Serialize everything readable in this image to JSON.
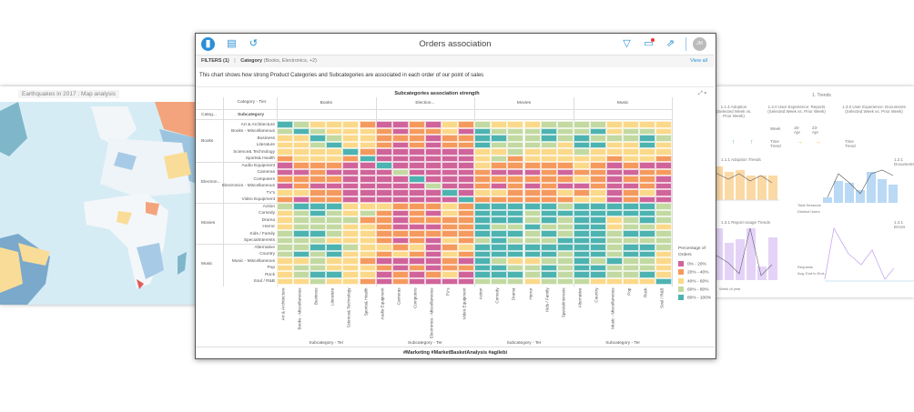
{
  "map_panel": {
    "title": "Earthquakes in 2017 : Map analysis"
  },
  "dashboard_panel": {
    "title": "1. Trends",
    "kpi_headers": [
      "1.1.4 Adoption (Selected Week vs. Prior Week)",
      "1.2.0 User Experience: Reports (Selected Week vs. Prior Week)",
      "1.3.0 User Experience: Documents (Selected Week vs. Prior Week)"
    ],
    "week_label": "Week",
    "weeks": [
      "16-Apr",
      "23-Apr"
    ],
    "trend_label": "Time Trend",
    "chart_titles": [
      "1.1.1 Adoption Trends",
      "1.2.1 Documents",
      "1.3.1 Report Usage Trends",
      "1.4.1 Errors"
    ],
    "legend1": [
      "Total Sessions",
      "Distinct Users"
    ],
    "legend2": [
      "Requests",
      "Avg. End to End..."
    ],
    "x_label": "Week of year"
  },
  "card": {
    "title": "Orders association",
    "icons": [
      "bar-chart-icon",
      "document-icon",
      "history-icon",
      "filter-icon",
      "comment-icon",
      "share-icon"
    ],
    "avatar": "JM",
    "filters": {
      "label": "FILTERS (1)",
      "sep": "|",
      "field": "Category",
      "values": "(Books, Electronics, +2)",
      "view_all": "View all"
    },
    "description": "This chart shows how strong Product Categories and Subcategories are associated in each order of our point of sales",
    "footer": "#Marketing #MarketBasketAnalysis #agilebi"
  },
  "chart_data": {
    "type": "heatmap",
    "title": "Subcategories association strength",
    "col_header": "Category - Tier",
    "row_header_category": "Categ...",
    "row_header_sub": "Subcategory",
    "x_axis_label": "Subcategory - Ter",
    "col_groups": [
      "Books",
      "Election...",
      "Movies",
      "Music"
    ],
    "row_groups": [
      "Books",
      "Electron...",
      "Movies",
      "Music"
    ],
    "rows": [
      "Art & Architecture",
      "Books - Miscellaneous",
      "Business",
      "Literature",
      "Science& Technology",
      "Sports& Health",
      "Audio Equipment",
      "Cameras",
      "Computers",
      "Electronics - Miscellaneous",
      "TV's",
      "Video Equipment",
      "Action",
      "Comedy",
      "Drama",
      "Horror",
      "Kids / Family",
      "SpecialInterests",
      "Alternative",
      "Country",
      "Music - Miscellaneous",
      "Pop",
      "Rock",
      "Soul / R&B"
    ],
    "columns": [
      "Art & Architecture",
      "Books - Miscellaneous",
      "Business",
      "Literature",
      "Science& Technology",
      "Sports& Health",
      "Audio Equipment",
      "Cameras",
      "Computers",
      "Electronics - Miscellaneous",
      "TV's",
      "Video Equipment",
      "Action",
      "Comedy",
      "Drama",
      "Horror",
      "Kids / Family",
      "SpecialInterests",
      "Alternative",
      "Country",
      "Music - Miscellaneous",
      "Pop",
      "Rock",
      "Soul / R&B"
    ],
    "legend_title": "Percentage of Orders",
    "bins": [
      {
        "label": "0% - 20%",
        "color": "#d0649a"
      },
      {
        "label": "20% - 40%",
        "color": "#f59a5e"
      },
      {
        "label": "40% - 60%",
        "color": "#fbd98a"
      },
      {
        "label": "60% - 80%",
        "color": "#c3d9a2"
      },
      {
        "label": "80% - 100%",
        "color": "#4db3b0"
      }
    ],
    "bin_index_matrix": [
      [
        4,
        3,
        2,
        2,
        2,
        1,
        0,
        0,
        1,
        0,
        2,
        1,
        3,
        2,
        2,
        2,
        3,
        3,
        3,
        3,
        2,
        2,
        2,
        2
      ],
      [
        3,
        4,
        3,
        2,
        2,
        2,
        1,
        0,
        1,
        1,
        2,
        0,
        4,
        3,
        3,
        3,
        4,
        3,
        3,
        4,
        2,
        3,
        3,
        2
      ],
      [
        2,
        2,
        4,
        3,
        2,
        2,
        1,
        1,
        1,
        0,
        1,
        1,
        4,
        4,
        3,
        3,
        4,
        3,
        4,
        3,
        3,
        3,
        4,
        3
      ],
      [
        2,
        2,
        3,
        4,
        2,
        2,
        1,
        0,
        1,
        0,
        1,
        1,
        4,
        3,
        3,
        3,
        3,
        2,
        4,
        4,
        2,
        2,
        4,
        2
      ],
      [
        2,
        2,
        2,
        2,
        4,
        1,
        0,
        0,
        0,
        0,
        0,
        0,
        2,
        2,
        3,
        2,
        2,
        2,
        3,
        2,
        2,
        2,
        2,
        2
      ],
      [
        1,
        2,
        2,
        2,
        1,
        4,
        0,
        0,
        0,
        0,
        0,
        0,
        2,
        3,
        1,
        2,
        2,
        2,
        2,
        2,
        1,
        2,
        2,
        1
      ],
      [
        0,
        1,
        1,
        1,
        0,
        0,
        4,
        0,
        0,
        0,
        0,
        0,
        2,
        1,
        1,
        1,
        1,
        1,
        2,
        1,
        0,
        1,
        0,
        0
      ],
      [
        0,
        0,
        1,
        0,
        0,
        0,
        0,
        3,
        0,
        0,
        0,
        0,
        1,
        0,
        0,
        0,
        1,
        0,
        1,
        1,
        0,
        0,
        1,
        1
      ],
      [
        1,
        1,
        1,
        1,
        0,
        0,
        0,
        0,
        4,
        0,
        0,
        0,
        1,
        1,
        1,
        1,
        1,
        1,
        2,
        1,
        0,
        1,
        1,
        0
      ],
      [
        0,
        1,
        0,
        0,
        0,
        0,
        0,
        0,
        0,
        3,
        0,
        0,
        1,
        0,
        1,
        0,
        1,
        0,
        0,
        1,
        0,
        0,
        1,
        0
      ],
      [
        2,
        2,
        1,
        1,
        0,
        0,
        0,
        0,
        0,
        0,
        4,
        0,
        2,
        2,
        1,
        1,
        1,
        2,
        1,
        2,
        0,
        1,
        2,
        0
      ],
      [
        1,
        0,
        1,
        1,
        0,
        0,
        0,
        0,
        0,
        0,
        0,
        4,
        1,
        1,
        1,
        1,
        1,
        1,
        2,
        2,
        0,
        1,
        0,
        0
      ],
      [
        3,
        4,
        4,
        4,
        2,
        2,
        2,
        1,
        1,
        1,
        2,
        1,
        4,
        4,
        4,
        4,
        4,
        3,
        4,
        4,
        4,
        4,
        4,
        3
      ],
      [
        2,
        3,
        4,
        3,
        2,
        3,
        1,
        0,
        1,
        0,
        2,
        1,
        4,
        4,
        4,
        3,
        4,
        4,
        4,
        4,
        4,
        4,
        4,
        3
      ],
      [
        2,
        3,
        3,
        3,
        3,
        1,
        1,
        0,
        1,
        1,
        1,
        1,
        4,
        4,
        4,
        3,
        4,
        3,
        4,
        4,
        2,
        3,
        4,
        3
      ],
      [
        2,
        3,
        3,
        3,
        2,
        2,
        1,
        0,
        0,
        0,
        1,
        1,
        4,
        3,
        3,
        4,
        3,
        3,
        4,
        4,
        2,
        3,
        3,
        2
      ],
      [
        3,
        4,
        4,
        3,
        2,
        2,
        1,
        1,
        1,
        1,
        1,
        1,
        4,
        4,
        4,
        3,
        4,
        3,
        4,
        4,
        3,
        4,
        4,
        3
      ],
      [
        3,
        3,
        3,
        2,
        2,
        2,
        1,
        0,
        1,
        0,
        2,
        1,
        3,
        4,
        3,
        3,
        3,
        4,
        4,
        4,
        3,
        3,
        3,
        3
      ],
      [
        3,
        3,
        4,
        4,
        3,
        2,
        2,
        1,
        2,
        0,
        1,
        2,
        4,
        4,
        4,
        4,
        4,
        4,
        4,
        4,
        3,
        4,
        4,
        3
      ],
      [
        3,
        4,
        3,
        4,
        2,
        2,
        1,
        2,
        1,
        0,
        2,
        1,
        4,
        4,
        4,
        4,
        4,
        3,
        4,
        4,
        3,
        4,
        4,
        2
      ],
      [
        2,
        2,
        3,
        2,
        2,
        1,
        0,
        0,
        0,
        0,
        1,
        0,
        4,
        3,
        2,
        2,
        3,
        3,
        4,
        3,
        4,
        3,
        3,
        2
      ],
      [
        2,
        3,
        3,
        2,
        2,
        2,
        1,
        0,
        1,
        0,
        1,
        1,
        4,
        4,
        3,
        3,
        4,
        3,
        4,
        4,
        3,
        3,
        3,
        2
      ],
      [
        2,
        3,
        4,
        4,
        2,
        2,
        0,
        1,
        0,
        1,
        2,
        0,
        4,
        4,
        4,
        3,
        4,
        3,
        4,
        4,
        3,
        3,
        4,
        2
      ],
      [
        2,
        2,
        3,
        2,
        2,
        1,
        0,
        1,
        0,
        0,
        0,
        0,
        3,
        3,
        3,
        2,
        3,
        3,
        3,
        2,
        2,
        2,
        2,
        4
      ]
    ]
  }
}
